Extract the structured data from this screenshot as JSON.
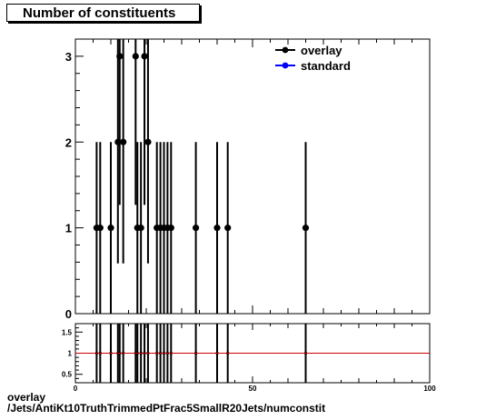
{
  "title": "Number of constituents",
  "footer": {
    "line1": "overlay",
    "line2": "/Jets/AntiKt10TruthTrimmedPtFrac5SmallR20Jets/numconstit"
  },
  "colors": {
    "overlay": "#000000",
    "standard": "#0000ff",
    "ratio_line": "#cc0000"
  },
  "chart_data": [
    {
      "type": "scatter",
      "title": "Number of constituents",
      "xlim": [
        0,
        100
      ],
      "ylim": [
        0,
        3.2
      ],
      "y_ticks": [
        0,
        1,
        2,
        3
      ],
      "legend": {
        "placement": "top-right",
        "entries": [
          "overlay",
          "standard"
        ]
      },
      "series": [
        {
          "name": "overlay",
          "marker": "circle",
          "points": [
            {
              "x": 6,
              "y": 1
            },
            {
              "x": 7,
              "y": 1
            },
            {
              "x": 10,
              "y": 1
            },
            {
              "x": 12,
              "y": 2
            },
            {
              "x": 12.5,
              "y": 3
            },
            {
              "x": 13.5,
              "y": 2
            },
            {
              "x": 17,
              "y": 3
            },
            {
              "x": 17.5,
              "y": 1
            },
            {
              "x": 18.5,
              "y": 1
            },
            {
              "x": 19.5,
              "y": 3
            },
            {
              "x": 20.5,
              "y": 2
            },
            {
              "x": 23,
              "y": 1
            },
            {
              "x": 24,
              "y": 1
            },
            {
              "x": 25,
              "y": 1
            },
            {
              "x": 26,
              "y": 1
            },
            {
              "x": 27,
              "y": 1
            },
            {
              "x": 34,
              "y": 1
            },
            {
              "x": 40,
              "y": 1
            },
            {
              "x": 43,
              "y": 1
            },
            {
              "x": 65,
              "y": 1
            }
          ]
        },
        {
          "name": "standard",
          "marker": "circle",
          "points": []
        }
      ]
    },
    {
      "type": "scatter",
      "xlim": [
        0,
        100
      ],
      "ylim": [
        0.3,
        1.7
      ],
      "y_ticks": [
        0.5,
        1,
        1.5
      ],
      "x_ticks": [
        0,
        50,
        100
      ],
      "reference_line": 1,
      "series": [
        {
          "name": "ratio",
          "points": [
            {
              "x": 6,
              "y": 1
            },
            {
              "x": 7,
              "y": 1
            },
            {
              "x": 10,
              "y": 1
            },
            {
              "x": 12,
              "y": 1
            },
            {
              "x": 12.5,
              "y": 1
            },
            {
              "x": 13.5,
              "y": 1
            },
            {
              "x": 17,
              "y": 1
            },
            {
              "x": 17.5,
              "y": 1
            },
            {
              "x": 18.5,
              "y": 1
            },
            {
              "x": 19.5,
              "y": 1
            },
            {
              "x": 20.5,
              "y": 1
            },
            {
              "x": 23,
              "y": 1
            },
            {
              "x": 24,
              "y": 1
            },
            {
              "x": 25,
              "y": 1
            },
            {
              "x": 26,
              "y": 1
            },
            {
              "x": 27,
              "y": 1
            },
            {
              "x": 34,
              "y": 1
            },
            {
              "x": 40,
              "y": 1
            },
            {
              "x": 43,
              "y": 1
            },
            {
              "x": 65,
              "y": 1
            }
          ]
        }
      ]
    }
  ]
}
